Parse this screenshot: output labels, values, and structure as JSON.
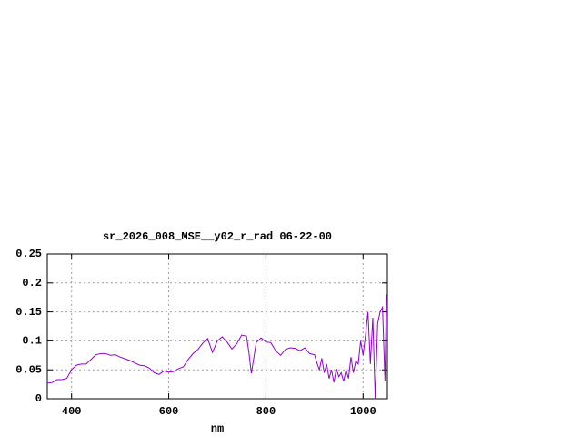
{
  "chart_data": {
    "type": "line",
    "title": "sr_2026_008_MSE__y02_r_rad 06-22-00",
    "x_label": "nm",
    "x": [
      350,
      360,
      370,
      380,
      390,
      400,
      410,
      420,
      430,
      440,
      450,
      460,
      470,
      480,
      490,
      500,
      510,
      520,
      530,
      540,
      550,
      560,
      570,
      580,
      590,
      600,
      610,
      620,
      630,
      640,
      650,
      660,
      670,
      680,
      690,
      700,
      710,
      720,
      730,
      740,
      750,
      760,
      765,
      770,
      775,
      780,
      790,
      800,
      810,
      820,
      830,
      840,
      850,
      860,
      870,
      880,
      890,
      900,
      905,
      910,
      915,
      920,
      925,
      930,
      935,
      940,
      945,
      950,
      955,
      960,
      965,
      970,
      975,
      980,
      985,
      990,
      995,
      1000,
      1005,
      1010,
      1015,
      1020,
      1025,
      1030,
      1035,
      1040,
      1045,
      1048
    ],
    "series": [
      {
        "color": "#9400d3",
        "values": [
          0.027,
          0.028,
          0.033,
          0.033,
          0.035,
          0.05,
          0.058,
          0.06,
          0.06,
          0.068,
          0.076,
          0.078,
          0.078,
          0.075,
          0.076,
          0.072,
          0.069,
          0.066,
          0.062,
          0.058,
          0.057,
          0.053,
          0.045,
          0.042,
          0.048,
          0.046,
          0.047,
          0.052,
          0.055,
          0.068,
          0.078,
          0.085,
          0.096,
          0.104,
          0.08,
          0.1,
          0.107,
          0.098,
          0.086,
          0.095,
          0.11,
          0.108,
          0.08,
          0.044,
          0.07,
          0.097,
          0.105,
          0.098,
          0.097,
          0.083,
          0.075,
          0.085,
          0.088,
          0.087,
          0.083,
          0.088,
          0.078,
          0.076,
          0.062,
          0.05,
          0.07,
          0.045,
          0.06,
          0.035,
          0.05,
          0.028,
          0.052,
          0.038,
          0.045,
          0.03,
          0.05,
          0.035,
          0.072,
          0.045,
          0.065,
          0.06,
          0.1,
          0.075,
          0.11,
          0.15,
          0.06,
          0.14,
          0,
          0.13,
          0.15,
          0.158,
          0.03,
          0.18
        ]
      }
    ],
    "xlim": [
      350,
      1050
    ],
    "xticks": [
      400,
      600,
      800,
      1000
    ],
    "ylim": [
      0,
      0.25
    ],
    "yticks": [
      0,
      0.05,
      0.1,
      0.15,
      0.2,
      0.25
    ],
    "grid": true
  }
}
